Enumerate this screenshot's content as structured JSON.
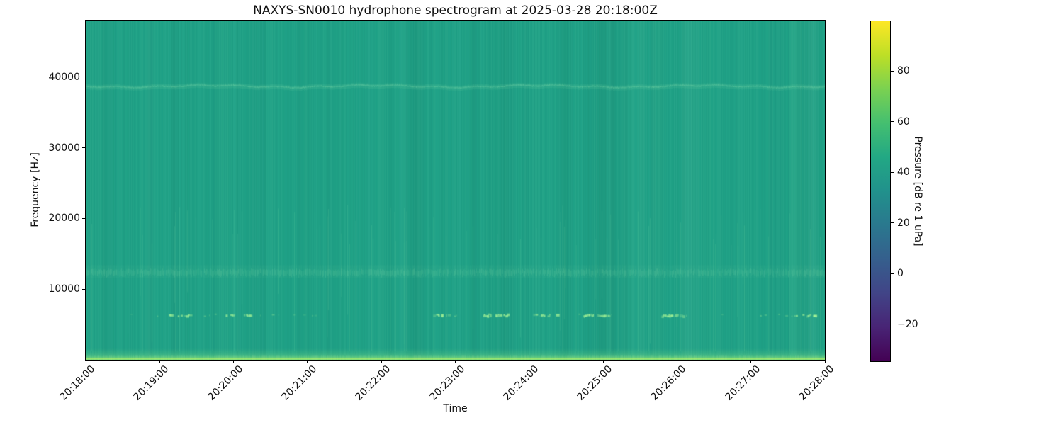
{
  "chart_data": {
    "type": "heatmap",
    "title": "NAXYS-SN0010 hydrophone spectrogram at 2025-03-28 20:18:00Z",
    "xlabel": "Time",
    "ylabel": "Frequency [Hz]",
    "x_ticks": [
      "20:18:00",
      "20:19:00",
      "20:20:00",
      "20:21:00",
      "20:22:00",
      "20:23:00",
      "20:24:00",
      "20:25:00",
      "20:26:00",
      "20:27:00",
      "20:28:00"
    ],
    "y_ticks": [
      10000,
      20000,
      30000,
      40000
    ],
    "x_range": [
      "20:18:00",
      "20:28:00"
    ],
    "duration_s": 600,
    "y_range_hz": [
      0,
      48000
    ],
    "grid": false,
    "colormap": "viridis",
    "colorbar": {
      "label": "Pressure [dB re 1 uPa]",
      "tick_values": [
        80,
        60,
        40,
        20,
        0,
        -20
      ],
      "tick_labels": [
        "80",
        "60",
        "40",
        "20",
        "0",
        "−20"
      ],
      "range_db": [
        -34.6,
        99.6
      ]
    },
    "background_level_db": 44,
    "background_color": "#20a287",
    "features": [
      {
        "name": "narrowband-tone",
        "freq_hz": 38700,
        "level_db": 50,
        "appearance": "faint wavy lighter line, continuous across full duration"
      },
      {
        "name": "broadband-band",
        "freq_hz": 12500,
        "bandwidth_hz": 1800,
        "level_db": 52,
        "appearance": "faint lighter horizontal band with vertical striation texture"
      },
      {
        "name": "intermittent-tone-bursts",
        "freq_hz": 6300,
        "level_db": 64,
        "burst_times_s": [
          74,
          123,
          287,
          333,
          373,
          414,
          477,
          586
        ],
        "appearance": "clusters of short bright green dashes"
      },
      {
        "name": "low-frequency-broadband",
        "freq_hz_range": [
          0,
          900
        ],
        "level_db": 66,
        "appearance": "bright green strip along the bottom edge of the plot"
      },
      {
        "name": "vertical-striations",
        "level_variation_db": 3,
        "appearance": "subtle per-time-column level noise across all frequencies"
      }
    ]
  }
}
